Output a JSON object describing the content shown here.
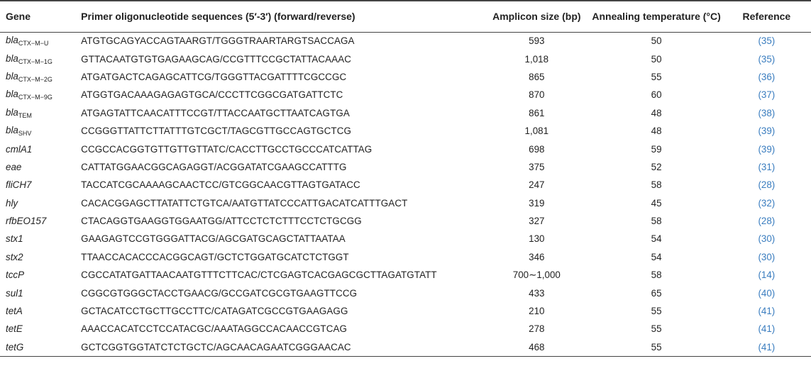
{
  "headers": {
    "gene": "Gene",
    "sequence": "Primer oligonucleotide sequences (5′-3′) (forward/reverse)",
    "amplicon": "Amplicon size (bp)",
    "annealing": "Annealing temperature (°C)",
    "reference": "Reference"
  },
  "rows": [
    {
      "gene": "bla",
      "sub": "CTX−M−U",
      "seq": "ATGTGCAGYACCAGTAARGT/TGGGTRAARTARGTSACCAGA",
      "amp": "593",
      "temp": "50",
      "ref": "(35)"
    },
    {
      "gene": "bla",
      "sub": "CTX−M−1G",
      "seq": "GTTACAATGTGTGAGAAGCAG/CCGTTTCCGCTATTACAAAC",
      "amp": "1,018",
      "temp": "50",
      "ref": "(35)"
    },
    {
      "gene": "bla",
      "sub": "CTX−M−2G",
      "seq": "ATGATGACTCAGAGCATTCG/TGGGTTACGATTTTCGCCGC",
      "amp": "865",
      "temp": "55",
      "ref": "(36)"
    },
    {
      "gene": "bla",
      "sub": "CTX−M−9G",
      "seq": "ATGGTGACAAAGAGAGTGCA/CCCTTCGGCGATGATTCTC",
      "amp": "870",
      "temp": "60",
      "ref": "(37)"
    },
    {
      "gene": "bla",
      "sub": "TEM",
      "seq": "ATGAGTATTCAACATTTCCGT/TTACCAATGCTTAATCAGTGA",
      "amp": "861",
      "temp": "48",
      "ref": "(38)"
    },
    {
      "gene": "bla",
      "sub": "SHV",
      "seq": "CCGGGTTATTCTTATTTGTCGCT/TAGCGTTGCCAGTGCTCG",
      "amp": "1,081",
      "temp": "48",
      "ref": "(39)"
    },
    {
      "gene": "cmlA1",
      "sub": "",
      "seq": "CCGCCACGGTGTTGTTGTTATC/CACCTTGCCTGCCCATCATTAG",
      "amp": "698",
      "temp": "59",
      "ref": "(39)"
    },
    {
      "gene": "eae",
      "sub": "",
      "seq": "CATTATGGAACGGCAGAGGT/ACGGATATCGAAGCCATTTG",
      "amp": "375",
      "temp": "52",
      "ref": "(31)"
    },
    {
      "gene": "fliCH7",
      "sub": "",
      "seq": "TACCATCGCAAAAGCAACTCC/GTCGGCAACGTTAGTGATACC",
      "amp": "247",
      "temp": "58",
      "ref": "(28)"
    },
    {
      "gene": "hly",
      "sub": "",
      "seq": "CACACGGAGCTTATATTCTGTCA/AATGTTATCCCATTGACATCATTTGACT",
      "amp": "319",
      "temp": "45",
      "ref": "(32)"
    },
    {
      "gene": "rfbEO157",
      "sub": "",
      "seq": "CTACAGGTGAAGGTGGAATGG/ATTCCTCTCTTTCCTCTGCGG",
      "amp": "327",
      "temp": "58",
      "ref": "(28)"
    },
    {
      "gene": "stx1",
      "sub": "",
      "seq": "GAAGAGTCCGTGGGATTACG/AGCGATGCAGCTATTAATAA",
      "amp": "130",
      "temp": "54",
      "ref": "(30)"
    },
    {
      "gene": "stx2",
      "sub": "",
      "seq": "TTAACCACACCCACGGCAGT/GCTCTGGATGCATCTCTGGT",
      "amp": "346",
      "temp": "54",
      "ref": "(30)"
    },
    {
      "gene": "tccP",
      "sub": "",
      "seq": "CGCCATATGATTAACAATGTTTCTTCAC/CTCGAGTCACGAGCGCTTAGATGTATT",
      "amp": "700∼1,000",
      "temp": "58",
      "ref": "(14)"
    },
    {
      "gene": "sul1",
      "sub": "",
      "seq": "CGGCGTGGGCTACCTGAACG/GCCGATCGCGTGAAGTTCCG",
      "amp": "433",
      "temp": "65",
      "ref": "(40)"
    },
    {
      "gene": "tetA",
      "sub": "",
      "seq": "GCTACATCCTGCTTGCCTTC/CATAGATCGCCGTGAAGAGG",
      "amp": "210",
      "temp": "55",
      "ref": "(41)"
    },
    {
      "gene": "tetE",
      "sub": "",
      "seq": "AAACCACATCCTCCATACGC/AAATAGGCCACAACCGTCAG",
      "amp": "278",
      "temp": "55",
      "ref": "(41)"
    },
    {
      "gene": "tetG",
      "sub": "",
      "seq": "GCTCGGTGGTATCTCTGCTC/AGCAACAGAATCGGGAACAC",
      "amp": "468",
      "temp": "55",
      "ref": "(41)"
    }
  ]
}
